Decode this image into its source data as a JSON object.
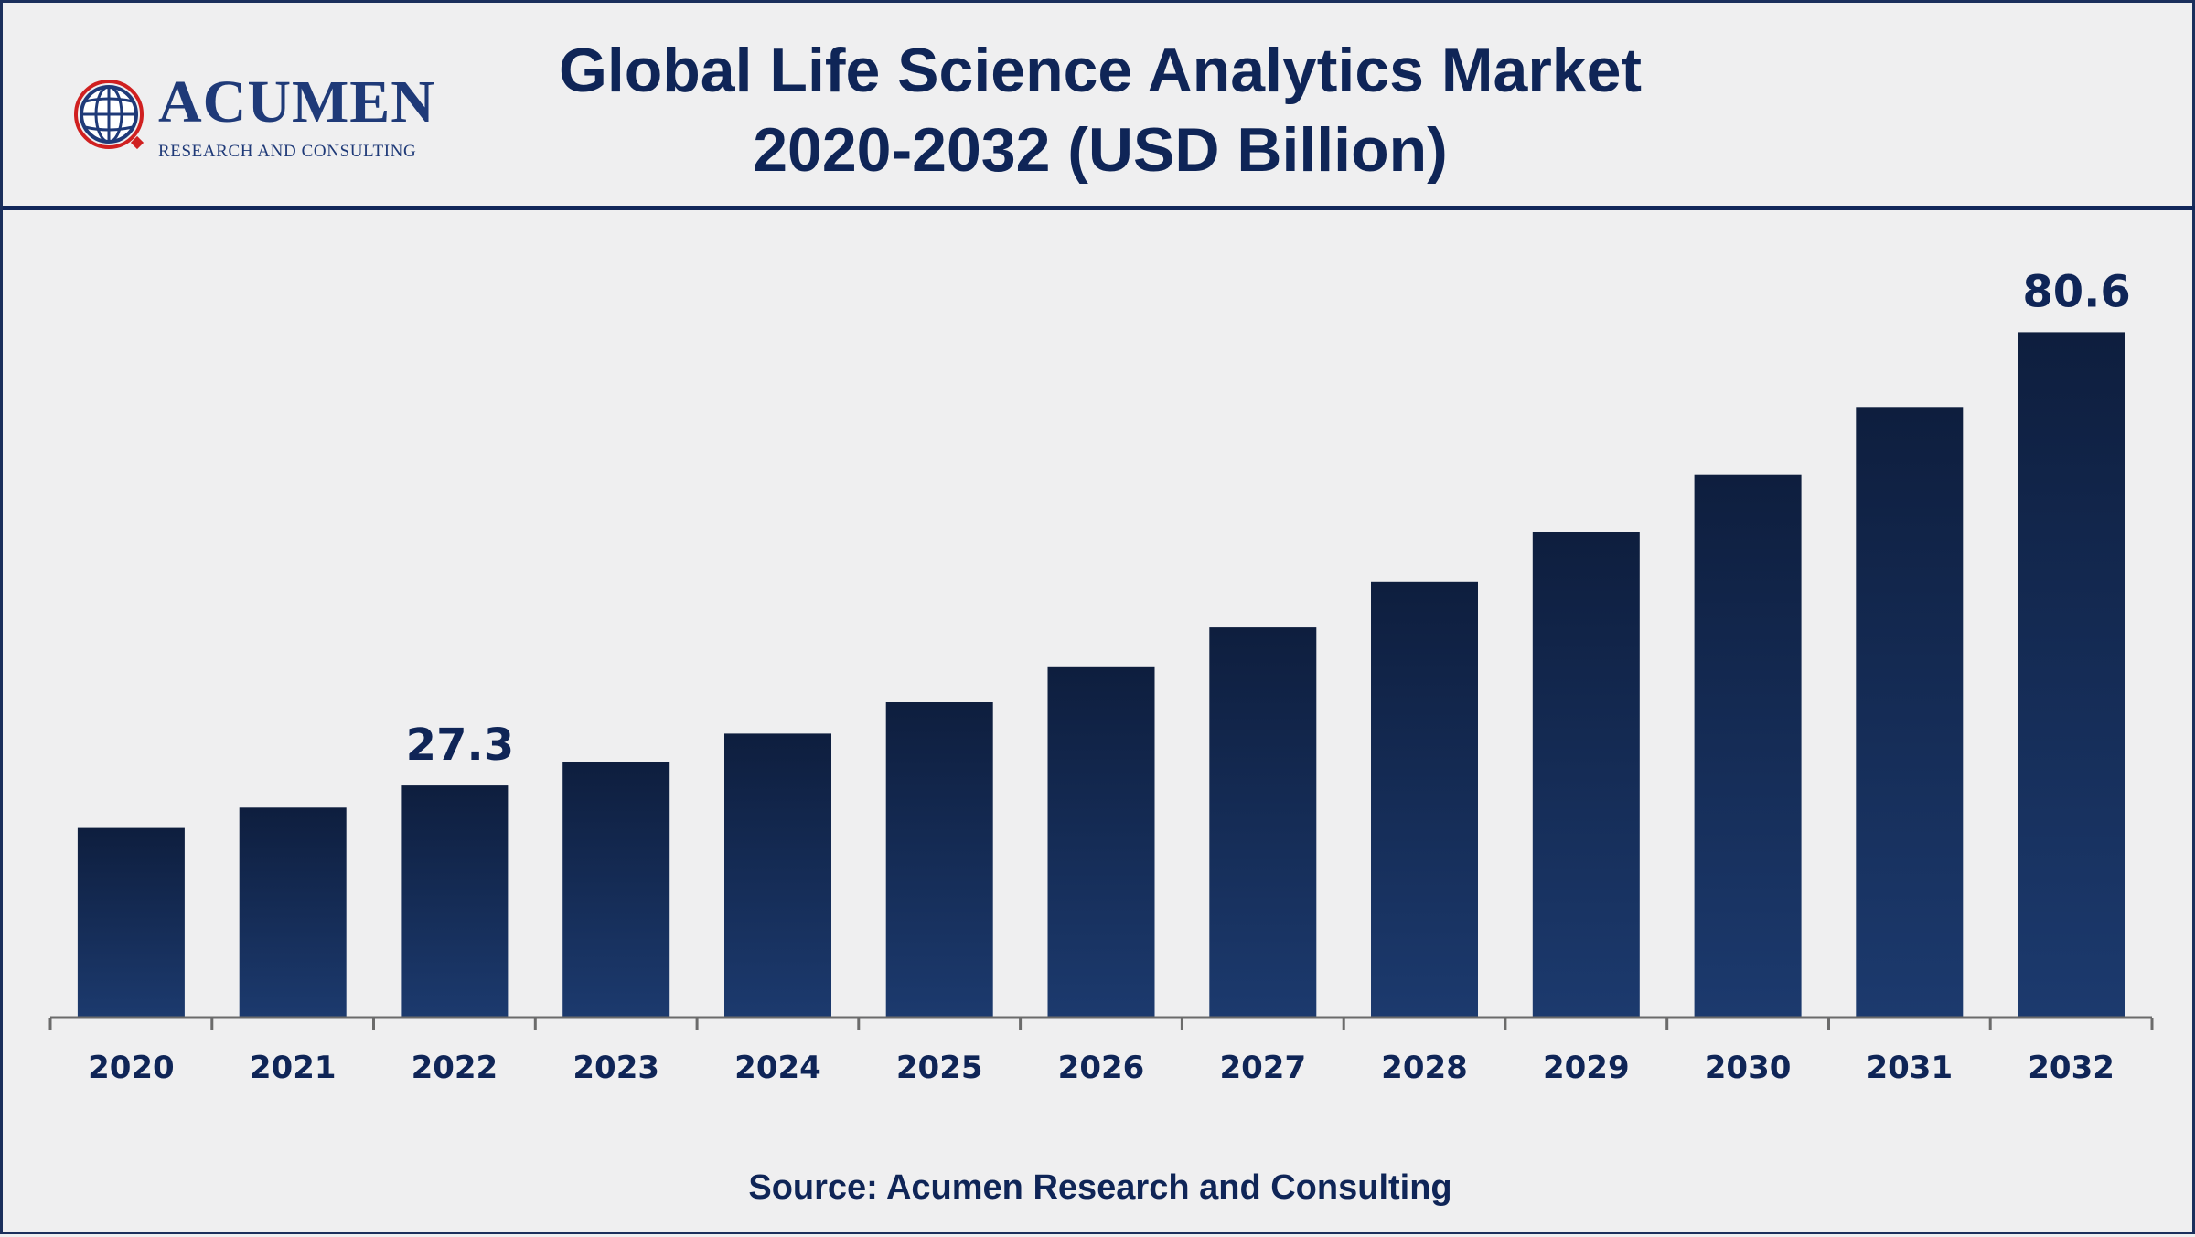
{
  "header": {
    "logo_text": "ACUMEN",
    "logo_subtext": "RESEARCH AND CONSULTING",
    "title_line1": "Global Life Science Analytics Market",
    "title_line2": "2020-2032 (USD Billion)"
  },
  "source": "Source: Acumen Research and Consulting",
  "colors": {
    "bar_top": "#0e1e3e",
    "bar_bottom": "#1c3a6e",
    "title": "#0f2557",
    "axis": "#6b6b6b",
    "background": "#efeff0",
    "logo_accent": "#d02020"
  },
  "chart_data": {
    "type": "bar",
    "categories": [
      "2020",
      "2021",
      "2022",
      "2023",
      "2024",
      "2025",
      "2026",
      "2027",
      "2028",
      "2029",
      "2030",
      "2031",
      "2032"
    ],
    "values": [
      22.3,
      24.7,
      27.3,
      30.1,
      33.4,
      37.1,
      41.2,
      45.9,
      51.2,
      57.1,
      63.9,
      71.8,
      80.6
    ],
    "data_labels": [
      {
        "index": 2,
        "text": "27.3"
      },
      {
        "index": 12,
        "text": "80.6"
      }
    ],
    "title": "Global Life Science Analytics Market 2020-2032 (USD Billion)",
    "xlabel": "",
    "ylabel": "",
    "ylim": [
      0,
      90
    ],
    "grid": false,
    "legend": "none"
  }
}
